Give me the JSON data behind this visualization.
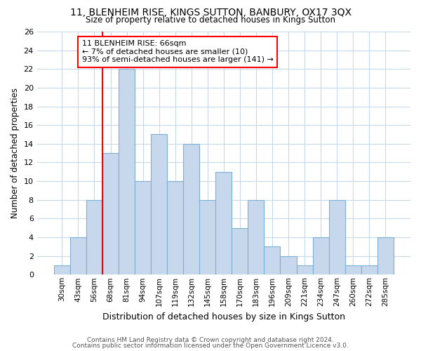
{
  "title1": "11, BLENHEIM RISE, KINGS SUTTON, BANBURY, OX17 3QX",
  "title2": "Size of property relative to detached houses in Kings Sutton",
  "xlabel": "Distribution of detached houses by size in Kings Sutton",
  "ylabel": "Number of detached properties",
  "categories": [
    "30sqm",
    "43sqm",
    "56sqm",
    "68sqm",
    "81sqm",
    "94sqm",
    "107sqm",
    "119sqm",
    "132sqm",
    "145sqm",
    "158sqm",
    "170sqm",
    "183sqm",
    "196sqm",
    "209sqm",
    "221sqm",
    "234sqm",
    "247sqm",
    "260sqm",
    "272sqm",
    "285sqm"
  ],
  "values": [
    1,
    4,
    8,
    13,
    22,
    10,
    15,
    10,
    14,
    8,
    11,
    5,
    8,
    3,
    2,
    1,
    4,
    8,
    1,
    1,
    4
  ],
  "bar_color": "#c8d8ec",
  "bar_edge_color": "#7bafd4",
  "background_color": "#ffffff",
  "plot_bg_color": "#ffffff",
  "grid_color": "#c8d8ec",
  "annotation_text1": "11 BLENHEIM RISE: 66sqm",
  "annotation_text2": "← 7% of detached houses are smaller (10)",
  "annotation_text3": "93% of semi-detached houses are larger (141) →",
  "annotation_box_color": "white",
  "annotation_box_edge_color": "red",
  "red_line_x": 3.0,
  "footer1": "Contains HM Land Registry data © Crown copyright and database right 2024.",
  "footer2": "Contains public sector information licensed under the Open Government Licence v3.0.",
  "ylim": [
    0,
    26
  ],
  "yticks": [
    0,
    2,
    4,
    6,
    8,
    10,
    12,
    14,
    16,
    18,
    20,
    22,
    24,
    26
  ]
}
